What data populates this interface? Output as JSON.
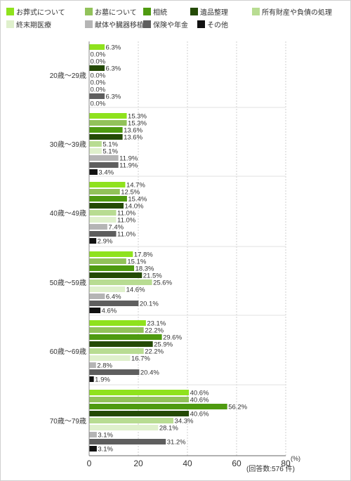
{
  "chart_data": {
    "type": "bar",
    "orientation": "horizontal",
    "categories": [
      "20歳〜29歳",
      "30歳〜39歳",
      "40歳〜49歳",
      "50歳〜59歳",
      "60歳〜69歳",
      "70歳〜79歳"
    ],
    "series": [
      {
        "name": "お葬式について",
        "color": "#8fe21d",
        "values": [
          6.3,
          15.3,
          14.7,
          17.8,
          23.1,
          40.6
        ]
      },
      {
        "name": "お墓について",
        "color": "#92c25a",
        "values": [
          0.0,
          15.3,
          12.5,
          15.1,
          22.2,
          40.6
        ]
      },
      {
        "name": "相続",
        "color": "#4e9a10",
        "values": [
          0.0,
          13.6,
          15.4,
          18.3,
          29.6,
          56.2
        ]
      },
      {
        "name": "遺品整理",
        "color": "#244a05",
        "values": [
          6.3,
          13.6,
          14.0,
          21.5,
          25.9,
          40.6
        ]
      },
      {
        "name": "所有財産や負債の処理",
        "color": "#b8dc92",
        "values": [
          0.0,
          5.1,
          11.0,
          25.6,
          22.2,
          34.3
        ]
      },
      {
        "name": "終末期医療",
        "color": "#dff0cc",
        "values": [
          0.0,
          5.1,
          11.0,
          14.6,
          16.7,
          28.1
        ]
      },
      {
        "name": "献体や臓器移植",
        "color": "#b5b5b5",
        "values": [
          0.0,
          11.9,
          7.4,
          6.4,
          2.8,
          3.1
        ]
      },
      {
        "name": "保険や年金",
        "color": "#5e5e5e",
        "values": [
          6.3,
          11.9,
          11.0,
          20.1,
          20.4,
          31.2
        ]
      },
      {
        "name": "その他",
        "color": "#111111",
        "values": [
          0.0,
          3.4,
          2.9,
          4.6,
          1.9,
          3.1
        ]
      }
    ],
    "value_format_suffix": "%",
    "xlim": [
      0,
      80
    ],
    "xticks": [
      "0",
      "20",
      "40",
      "60",
      "80"
    ],
    "x_unit": "(%)",
    "note": "(回答数:576 件)",
    "grid": "vertical-dashed",
    "legend": "top"
  }
}
